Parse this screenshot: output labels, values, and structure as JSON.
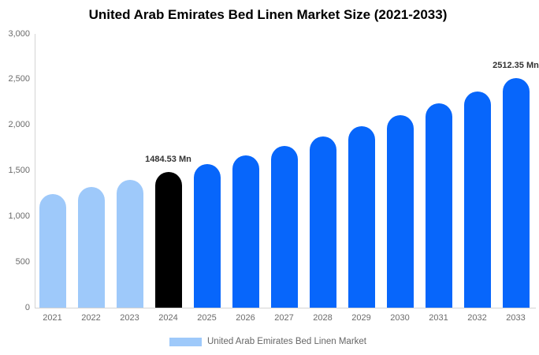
{
  "title": "United Arab Emirates Bed Linen Market Size (2021-2033)",
  "legend": {
    "label": "United Arab Emirates Bed Linen Market",
    "swatch_color": "#9ec9fa"
  },
  "colors": {
    "historical_bar": "#9ec9fa",
    "base_year_bar": "#000000",
    "forecast_bar": "#0766fb",
    "axis_line": "#d4d4d4",
    "tick_label": "#6b6b6b",
    "value_label": "#333333",
    "title": "#000000",
    "background": "#ffffff"
  },
  "chart_data": {
    "type": "bar",
    "title": "United Arab Emirates Bed Linen Market Size (2021-2033)",
    "xlabel": "",
    "ylabel": "",
    "unit": "Mn",
    "categories": [
      "2021",
      "2022",
      "2023",
      "2024",
      "2025",
      "2026",
      "2027",
      "2028",
      "2029",
      "2030",
      "2031",
      "2032",
      "2033"
    ],
    "values": [
      1245.7,
      1320.7,
      1400.2,
      1484.53,
      1573.9,
      1668.7,
      1769.1,
      1875.6,
      1988.5,
      2108.2,
      2235.1,
      2369.7,
      2512.35
    ],
    "bar_colors": [
      "#9ec9fa",
      "#9ec9fa",
      "#9ec9fa",
      "#000000",
      "#0766fb",
      "#0766fb",
      "#0766fb",
      "#0766fb",
      "#0766fb",
      "#0766fb",
      "#0766fb",
      "#0766fb",
      "#0766fb"
    ],
    "value_labels": [
      {
        "category": "2024",
        "label": "1484.53 Mn"
      },
      {
        "category": "2033",
        "label": "2512.35 Mn"
      }
    ],
    "ylim": [
      0,
      3000
    ],
    "ytick_values": [
      0,
      500,
      1000,
      1500,
      2000,
      2500,
      3000
    ],
    "ytick_labels": [
      "0",
      "500",
      "1,000",
      "1,500",
      "2,000",
      "2,500",
      "3,000"
    ],
    "grid": false,
    "legend_position": "bottom",
    "legend_entries": [
      "United Arab Emirates Bed Linen Market"
    ]
  }
}
